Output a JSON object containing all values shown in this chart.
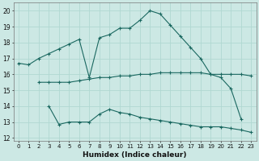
{
  "xlabel": "Humidex (Indice chaleur)",
  "bg_color": "#cce8e4",
  "grid_color": "#b0d8d2",
  "line_color": "#1a6860",
  "xlim": [
    -0.5,
    23.5
  ],
  "ylim": [
    11.8,
    20.5
  ],
  "yticks": [
    12,
    13,
    14,
    15,
    16,
    17,
    18,
    19,
    20
  ],
  "xticks": [
    0,
    1,
    2,
    3,
    4,
    5,
    6,
    7,
    8,
    9,
    10,
    11,
    12,
    13,
    14,
    15,
    16,
    17,
    18,
    19,
    20,
    21,
    22,
    23
  ],
  "line1_x": [
    0,
    1,
    2,
    3,
    4,
    5,
    6,
    7,
    8,
    9,
    10,
    11,
    12,
    13,
    14,
    15,
    16,
    17,
    18,
    19,
    20,
    21,
    22
  ],
  "line1_y": [
    16.7,
    16.6,
    17.0,
    17.3,
    17.6,
    17.9,
    18.2,
    15.8,
    18.3,
    18.5,
    18.9,
    18.9,
    19.4,
    20.0,
    19.8,
    19.1,
    18.4,
    17.7,
    17.0,
    16.0,
    15.8,
    15.1,
    13.2
  ],
  "line2_x": [
    2,
    3,
    4,
    5,
    6,
    7,
    8,
    9,
    10,
    11,
    12,
    13,
    14,
    15,
    16,
    17,
    18,
    19,
    20,
    21,
    22,
    23
  ],
  "line2_y": [
    15.5,
    15.5,
    15.5,
    15.5,
    15.6,
    15.7,
    15.8,
    15.8,
    15.9,
    15.9,
    16.0,
    16.0,
    16.1,
    16.1,
    16.1,
    16.1,
    16.1,
    16.0,
    16.0,
    16.0,
    16.0,
    15.9
  ],
  "line3_x": [
    3,
    4,
    5,
    6,
    7,
    8,
    9,
    10,
    11,
    12,
    13,
    14,
    15,
    16,
    17,
    18,
    19,
    20,
    21,
    22,
    23
  ],
  "line3_y": [
    14.0,
    12.85,
    13.0,
    13.0,
    13.0,
    13.5,
    13.8,
    13.6,
    13.5,
    13.3,
    13.2,
    13.1,
    13.0,
    12.9,
    12.8,
    12.7,
    12.7,
    12.7,
    12.6,
    12.5,
    12.35
  ]
}
